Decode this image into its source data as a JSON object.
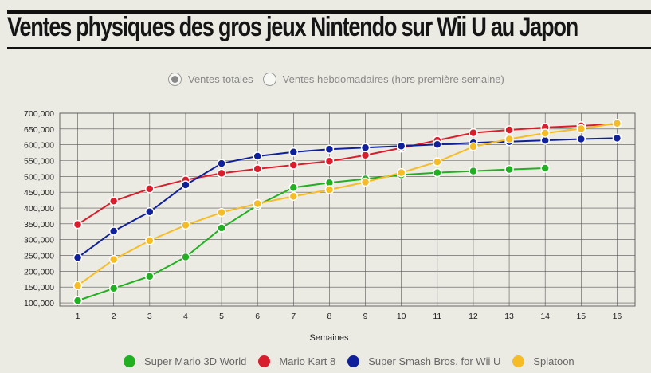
{
  "header": {
    "title": "Ventes physiques des gros jeux Nintendo sur Wii U au Japon"
  },
  "controls": {
    "options": [
      {
        "label": "Ventes totales",
        "selected": true
      },
      {
        "label": "Ventes hebdomadaires (hors première semaine)",
        "selected": false
      }
    ]
  },
  "chart_data": {
    "type": "line",
    "title": "Ventes physiques des gros jeux Nintendo sur Wii U au Japon",
    "xlabel": "Semaines",
    "ylabel": "",
    "x": [
      1,
      2,
      3,
      4,
      5,
      6,
      7,
      8,
      9,
      10,
      11,
      12,
      13,
      14,
      15,
      16
    ],
    "xlim": [
      0.5,
      16.5
    ],
    "ylim": [
      90000,
      700000
    ],
    "y_ticks": [
      100000,
      150000,
      200000,
      250000,
      300000,
      350000,
      400000,
      450000,
      500000,
      550000,
      600000,
      650000,
      700000
    ],
    "y_tick_labels": [
      "100,000",
      "150,000",
      "200,000",
      "250,000",
      "300,000",
      "350,000",
      "400,000",
      "450,000",
      "500,000",
      "550,000",
      "600,000",
      "650,000",
      "700,000"
    ],
    "grid": true,
    "legend_position": "bottom",
    "series": [
      {
        "name": "Super Mario 3D World",
        "color": "#21b021",
        "values": [
          107000,
          146000,
          184000,
          245000,
          337000,
          409000,
          465000,
          480000,
          492000,
          505000,
          512000,
          517000,
          522000,
          526000,
          null,
          null
        ]
      },
      {
        "name": "Mario Kart 8",
        "color": "#d81e2c",
        "values": [
          348000,
          422000,
          461000,
          489000,
          510000,
          524000,
          536000,
          548000,
          567000,
          590000,
          614000,
          638000,
          647000,
          655000,
          660000,
          666000
        ]
      },
      {
        "name": "Super Smash Bros. for Wii U",
        "color": "#0f209a",
        "values": [
          243000,
          327000,
          388000,
          473000,
          541000,
          564000,
          577000,
          586000,
          591000,
          596000,
          601000,
          606000,
          610000,
          614000,
          618000,
          621000
        ]
      },
      {
        "name": "Splatoon",
        "color": "#f6bc25",
        "values": [
          155000,
          237000,
          297000,
          346000,
          386000,
          414000,
          437000,
          458000,
          482000,
          512000,
          546000,
          594000,
          618000,
          637000,
          651000,
          668000
        ]
      }
    ]
  }
}
